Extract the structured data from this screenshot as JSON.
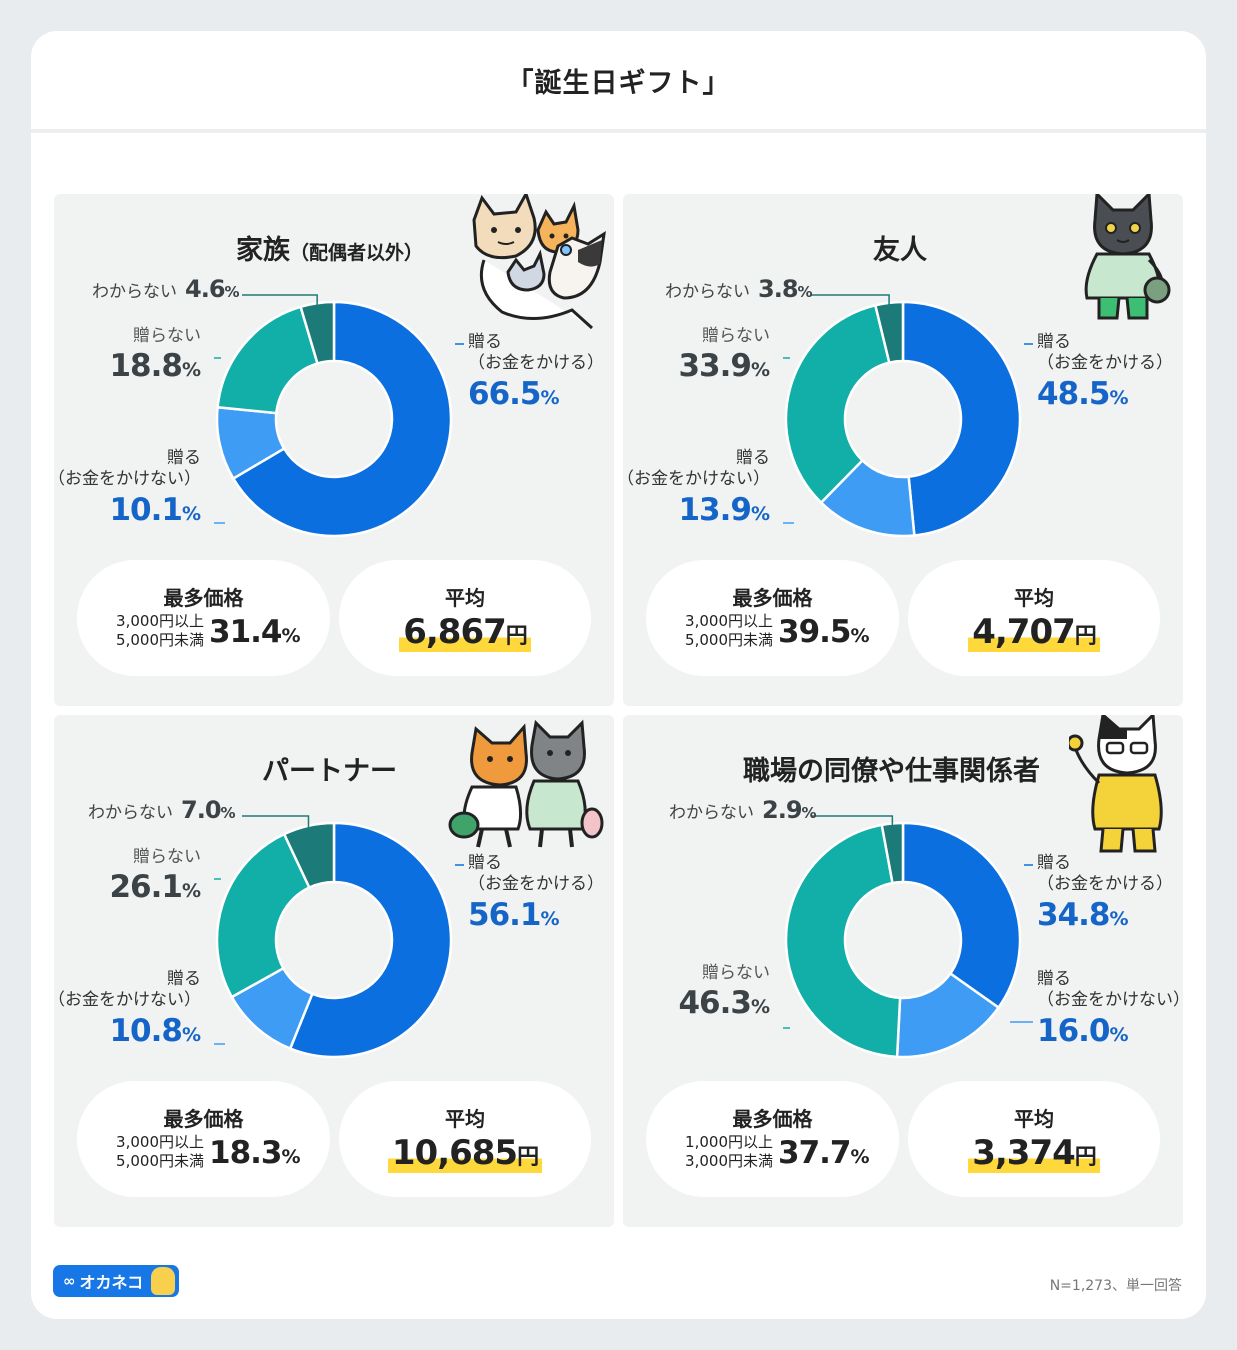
{
  "title": "「誕生日ギフト」",
  "colors": {
    "give_paid": "#0b6fe0",
    "give_free": "#3f9cf5",
    "not_give": "#12aea8",
    "unknown": "#1c7a78",
    "highlight": "#ffd93b",
    "value_blue": "#1565c8",
    "value_dark": "#3c4346"
  },
  "labels": {
    "give_paid_1": "贈る",
    "give_paid_2": "（お金をかける）",
    "give_free_1": "贈る",
    "give_free_2": "（お金をかけない）",
    "not_give": "贈らない",
    "unknown": "わからない",
    "mode": "最多価格",
    "avg": "平均",
    "pct": "%",
    "yen": "円"
  },
  "chart_data": [
    {
      "type": "pie",
      "title": "家族",
      "title_sub": "（配偶者以外）",
      "categories": [
        "贈る（お金をかける）",
        "贈る（お金をかけない）",
        "贈らない",
        "わからない"
      ],
      "values": [
        66.5,
        10.1,
        18.8,
        4.6
      ],
      "display": [
        "66.5",
        "10.1",
        "18.8",
        "4.6"
      ],
      "mode_cond": [
        "3,000円以上",
        "5,000円未満"
      ],
      "mode_value": "31.4",
      "avg": "6,867"
    },
    {
      "type": "pie",
      "title": "友人",
      "title_sub": "",
      "categories": [
        "贈る（お金をかける）",
        "贈る（お金をかけない）",
        "贈らない",
        "わからない"
      ],
      "values": [
        48.5,
        13.9,
        33.9,
        3.8
      ],
      "display": [
        "48.5",
        "13.9",
        "33.9",
        "3.8"
      ],
      "mode_cond": [
        "3,000円以上",
        "5,000円未満"
      ],
      "mode_value": "39.5",
      "avg": "4,707"
    },
    {
      "type": "pie",
      "title": "パートナー",
      "title_sub": "",
      "categories": [
        "贈る（お金をかける）",
        "贈る（お金をかけない）",
        "贈らない",
        "わからない"
      ],
      "values": [
        56.1,
        10.8,
        26.1,
        7.0
      ],
      "display": [
        "56.1",
        "10.8",
        "26.1",
        "7.0"
      ],
      "mode_cond": [
        "3,000円以上",
        "5,000円未満"
      ],
      "mode_value": "18.3",
      "avg": "10,685"
    },
    {
      "type": "pie",
      "title": "職場の同僚や仕事関係者",
      "title_sub": "",
      "categories": [
        "贈る（お金をかける）",
        "贈る（お金をかけない）",
        "贈らない",
        "わからない"
      ],
      "values": [
        34.8,
        16.0,
        46.3,
        2.9
      ],
      "display": [
        "34.8",
        "16.0",
        "46.3",
        "2.9"
      ],
      "mode_cond": [
        "1,000円以上",
        "3,000円未満"
      ],
      "mode_value": "37.7",
      "avg": "3,374"
    }
  ],
  "illustrations": [
    "cat-family-icon",
    "cat-friend-icon",
    "cat-partner-icon",
    "cat-work-icon"
  ],
  "footer": {
    "logo_text": "オカネコ",
    "note": "N=1,273、単一回答"
  }
}
